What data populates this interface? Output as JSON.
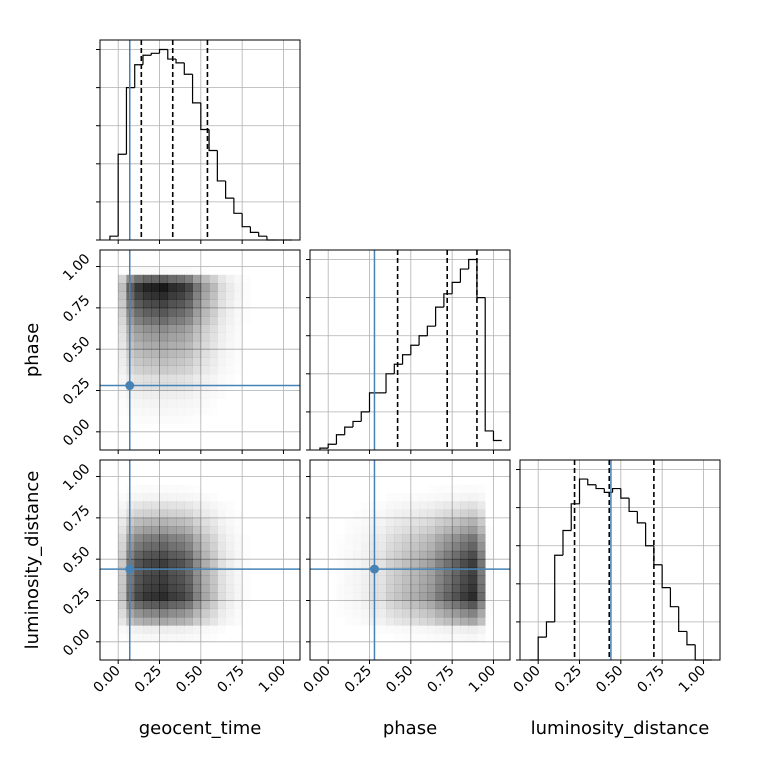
{
  "chart_data": {
    "type": "corner",
    "parameters": [
      {
        "name": "geocent_time",
        "counts": [
          0.02,
          0.45,
          0.8,
          0.92,
          0.97,
          0.98,
          1.0,
          0.95,
          0.93,
          0.87,
          0.72,
          0.58,
          0.47,
          0.31,
          0.22,
          0.14,
          0.07,
          0.04,
          0.02,
          0,
          0,
          0
        ],
        "quantiles": [
          0.14,
          0.33,
          0.54
        ],
        "truth": 0.07
      },
      {
        "name": "phase",
        "counts": [
          0.01,
          0.03,
          0.08,
          0.12,
          0.15,
          0.2,
          0.3,
          0.3,
          0.4,
          0.45,
          0.5,
          0.55,
          0.6,
          0.65,
          0.75,
          0.82,
          0.88,
          0.95,
          1.0,
          0.8,
          0.1,
          0.05
        ],
        "quantiles": [
          0.42,
          0.72,
          0.9
        ],
        "truth": 0.28
      },
      {
        "name": "luminosity_distance",
        "counts": [
          0,
          0.12,
          0.2,
          0.55,
          0.68,
          0.82,
          0.95,
          0.92,
          0.9,
          0.88,
          0.9,
          0.85,
          0.78,
          0.72,
          0.6,
          0.5,
          0.38,
          0.28,
          0.15,
          0.08,
          0,
          0
        ],
        "quantiles": [
          0.22,
          0.43,
          0.7
        ],
        "truth": 0.44
      }
    ],
    "bins": [
      -0.05,
      0,
      0.05,
      0.1,
      0.15,
      0.2,
      0.25,
      0.3,
      0.35,
      0.4,
      0.45,
      0.5,
      0.55,
      0.6,
      0.65,
      0.7,
      0.75,
      0.8,
      0.85,
      0.9,
      0.95,
      1.0,
      1.05
    ],
    "lim": [
      -0.11,
      1.1
    ],
    "ticks": [
      {
        "value": 0,
        "label": "0.00"
      },
      {
        "value": 0.25,
        "label": "0.25"
      },
      {
        "value": 0.5,
        "label": "0.50"
      },
      {
        "value": 0.75,
        "label": "0.75"
      },
      {
        "value": 1,
        "label": "1.00"
      }
    ],
    "hist_ylim": [
      0,
      1.05
    ],
    "hist_yticks": [
      0,
      0.2,
      0.4,
      0.6,
      0.8,
      1
    ],
    "truth_color": "#4682b4",
    "grid": true
  }
}
